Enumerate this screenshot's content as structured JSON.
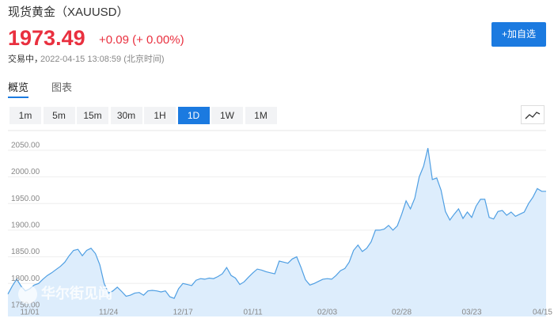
{
  "header": {
    "title": "现货黄金（XAUUSD）",
    "price": "1973.49",
    "change": "+0.09 (+ 0.00%)",
    "status": "交易中，",
    "timestamp": "2022-04-15 13:08:59 (北京时间)",
    "button": "+加自选"
  },
  "tabs": [
    "概览",
    "图表"
  ],
  "active_tab": 0,
  "periods": [
    "1m",
    "5m",
    "15m",
    "30m",
    "1H",
    "1D",
    "1W",
    "1M"
  ],
  "active_period": 5,
  "watermark": "华尔街见闻",
  "chart_data": {
    "type": "area",
    "color": "#4f9fe3",
    "fill": "#ddedfc",
    "categories": [
      null,
      null,
      null,
      null,
      null,
      "11/01",
      null,
      null,
      null,
      null,
      null,
      null,
      null,
      null,
      null,
      null,
      null,
      null,
      null,
      null,
      null,
      null,
      null,
      "11/24",
      null,
      null,
      null,
      null,
      null,
      null,
      null,
      null,
      null,
      null,
      null,
      null,
      null,
      null,
      null,
      null,
      "12/17",
      null,
      null,
      null,
      null,
      null,
      null,
      null,
      null,
      null,
      null,
      null,
      null,
      null,
      null,
      null,
      "01/11",
      null,
      null,
      null,
      null,
      null,
      null,
      null,
      null,
      null,
      null,
      null,
      null,
      null,
      null,
      null,
      null,
      "02/03",
      null,
      null,
      null,
      null,
      null,
      null,
      null,
      null,
      null,
      null,
      null,
      null,
      null,
      null,
      null,
      null,
      "02/28",
      null,
      null,
      null,
      null,
      null,
      null,
      null,
      null,
      null,
      null,
      null,
      null,
      null,
      null,
      null,
      "03/23",
      null,
      null,
      null,
      null,
      null,
      null,
      null,
      null,
      null,
      null,
      null,
      null,
      null,
      null,
      null,
      null,
      "04/15"
    ],
    "values": [
      1780,
      1795,
      1808,
      1795,
      1786,
      1790,
      1797,
      1800,
      1808,
      1815,
      1820,
      1826,
      1832,
      1840,
      1852,
      1862,
      1864,
      1852,
      1862,
      1866,
      1856,
      1835,
      1800,
      1782,
      1786,
      1793,
      1785,
      1776,
      1778,
      1782,
      1783,
      1778,
      1786,
      1787,
      1786,
      1784,
      1786,
      1775,
      1772,
      1790,
      1800,
      1798,
      1796,
      1806,
      1809,
      1808,
      1810,
      1809,
      1813,
      1818,
      1830,
      1815,
      1810,
      1798,
      1803,
      1812,
      1820,
      1827,
      1825,
      1822,
      1820,
      1818,
      1842,
      1840,
      1838,
      1846,
      1850,
      1830,
      1807,
      1797,
      1800,
      1804,
      1808,
      1809,
      1808,
      1815,
      1824,
      1828,
      1840,
      1862,
      1872,
      1860,
      1866,
      1878,
      1900,
      1900,
      1902,
      1909,
      1900,
      1908,
      1930,
      1955,
      1940,
      1960,
      2000,
      2020,
      2054,
      1995,
      1998,
      1975,
      1935,
      1919,
      1930,
      1940,
      1922,
      1934,
      1924,
      1945,
      1958,
      1958,
      1924,
      1921,
      1935,
      1937,
      1928,
      1934,
      1926,
      1930,
      1934,
      1950,
      1962,
      1978,
      1973,
      1973
    ],
    "ylim": [
      1738,
      2087
    ],
    "yticks": [
      {
        "value": 1750,
        "label": "1750.00"
      },
      {
        "value": 1800,
        "label": "1800.00"
      },
      {
        "value": 1850,
        "label": "1850.00"
      },
      {
        "value": 1900,
        "label": "1900.00"
      },
      {
        "value": 1950,
        "label": "1950.00"
      },
      {
        "value": 2000,
        "label": "2000.00"
      },
      {
        "value": 2050,
        "label": "2050.00"
      }
    ],
    "grid": true
  }
}
